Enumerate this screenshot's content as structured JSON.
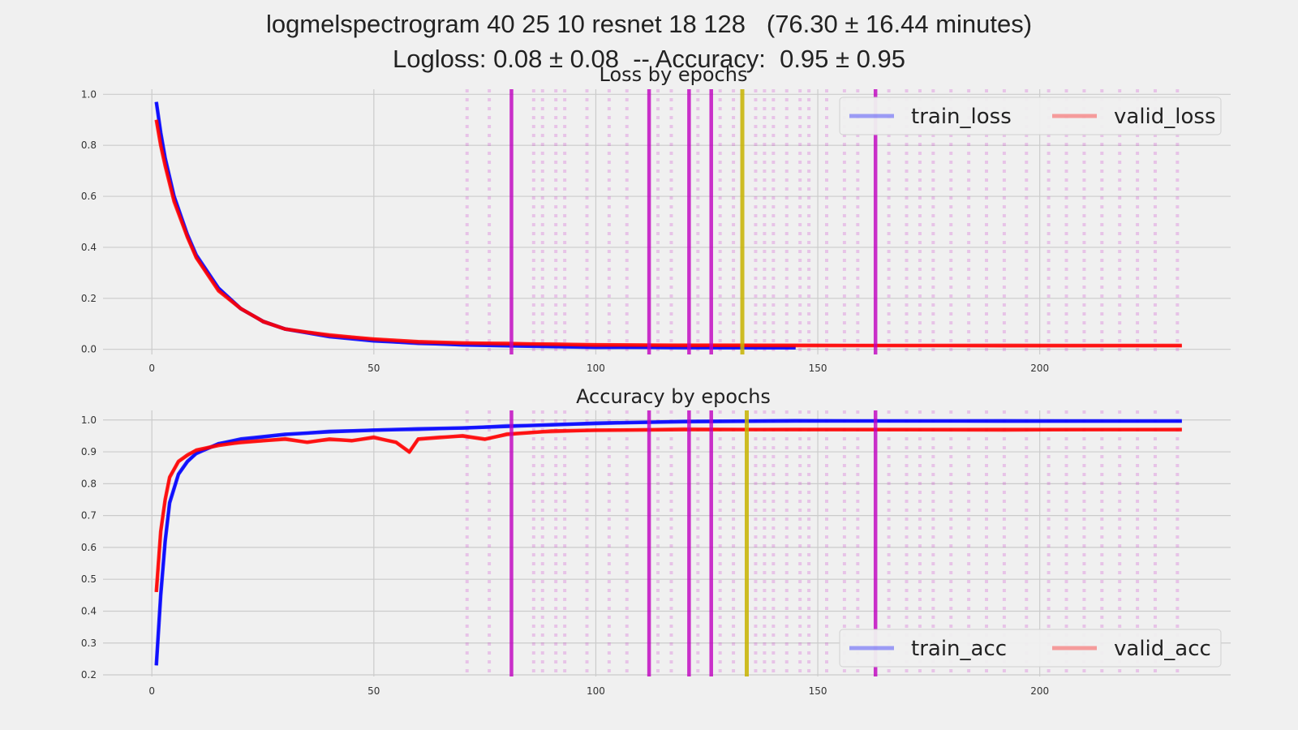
{
  "figure": {
    "title_line1": "logmelspectrogram 40 25 10 resnet 18 128   (76.30 ± 16.44 minutes)",
    "title_line2": "Logloss: 0.08 ± 0.08  -- Accuracy:  0.95 ± 0.95"
  },
  "colors": {
    "train": "#0000ff",
    "valid": "#ff0000",
    "marker": "#c000c0",
    "best": "#c8b400",
    "grid": "#cbcbcb",
    "background": "#f0f0f0"
  },
  "chart_data": [
    {
      "type": "line",
      "title": "Loss by epochs",
      "xlim": [
        -11,
        243
      ],
      "ylim": [
        -0.02,
        1.02
      ],
      "xticks": [
        0,
        50,
        100,
        150,
        200
      ],
      "yticks": [
        0.0,
        0.2,
        0.4,
        0.6,
        0.8,
        1.0
      ],
      "ytick_labels": [
        "0.0",
        "0.2",
        "0.4",
        "0.6",
        "0.8",
        "1.0"
      ],
      "grid": true,
      "legend": {
        "position": "top-right",
        "columns": 2,
        "entries": [
          "train_loss",
          "valid_loss"
        ]
      },
      "series": [
        {
          "name": "train_loss",
          "x": [
            1,
            2,
            3,
            5,
            8,
            10,
            15,
            20,
            25,
            30,
            40,
            50,
            60,
            70,
            80,
            90,
            100,
            120,
            145
          ],
          "y": [
            0.97,
            0.85,
            0.75,
            0.6,
            0.45,
            0.37,
            0.24,
            0.16,
            0.11,
            0.08,
            0.05,
            0.033,
            0.025,
            0.018,
            0.014,
            0.011,
            0.009,
            0.007,
            0.006
          ]
        },
        {
          "name": "valid_loss",
          "x": [
            1,
            2,
            3,
            5,
            8,
            10,
            15,
            20,
            25,
            30,
            40,
            50,
            60,
            70,
            80,
            90,
            100,
            120,
            145,
            192,
            232
          ],
          "y": [
            0.9,
            0.8,
            0.72,
            0.58,
            0.44,
            0.36,
            0.23,
            0.16,
            0.11,
            0.08,
            0.055,
            0.04,
            0.03,
            0.025,
            0.022,
            0.02,
            0.018,
            0.016,
            0.015,
            0.015,
            0.015
          ]
        }
      ],
      "vlines_solid": [
        81,
        112,
        121,
        126
      ],
      "vlines_solid_late": [
        163
      ],
      "vline_best": 133,
      "vlines_dotted": [
        71,
        76,
        86,
        88,
        91,
        93,
        98,
        103,
        107,
        114,
        117,
        123,
        128,
        131,
        136,
        138,
        140,
        143,
        146,
        148,
        152,
        156,
        159,
        166,
        170,
        173,
        176,
        180,
        184,
        188,
        192,
        197,
        202,
        206,
        210,
        214,
        218,
        222,
        226,
        231
      ]
    },
    {
      "type": "line",
      "title": "Accuracy by epochs",
      "xlim": [
        -11,
        243
      ],
      "ylim": [
        0.195,
        1.03
      ],
      "xticks": [
        0,
        50,
        100,
        150,
        200
      ],
      "yticks": [
        0.2,
        0.3,
        0.4,
        0.5,
        0.6,
        0.7,
        0.8,
        0.9,
        1.0
      ],
      "ytick_labels": [
        "0.2",
        "0.3",
        "0.4",
        "0.5",
        "0.6",
        "0.7",
        "0.8",
        "0.9",
        "1.0"
      ],
      "grid": true,
      "legend": {
        "position": "bottom-right",
        "columns": 2,
        "entries": [
          "train_acc",
          "valid_acc"
        ]
      },
      "series": [
        {
          "name": "train_acc",
          "x": [
            1,
            2,
            3,
            4,
            6,
            8,
            10,
            15,
            20,
            30,
            40,
            50,
            60,
            70,
            80,
            90,
            100,
            120,
            145,
            192,
            232
          ],
          "y": [
            0.23,
            0.45,
            0.62,
            0.74,
            0.83,
            0.87,
            0.895,
            0.925,
            0.94,
            0.955,
            0.963,
            0.968,
            0.972,
            0.975,
            0.98,
            0.985,
            0.99,
            0.995,
            0.997,
            0.997,
            0.997
          ]
        },
        {
          "name": "valid_acc",
          "x": [
            1,
            2,
            3,
            4,
            6,
            8,
            10,
            15,
            20,
            25,
            30,
            35,
            40,
            45,
            50,
            55,
            58,
            60,
            65,
            70,
            75,
            80,
            85,
            90,
            100,
            120,
            145,
            192,
            232
          ],
          "y": [
            0.46,
            0.65,
            0.75,
            0.82,
            0.87,
            0.89,
            0.905,
            0.92,
            0.93,
            0.935,
            0.94,
            0.93,
            0.94,
            0.935,
            0.945,
            0.93,
            0.9,
            0.94,
            0.945,
            0.95,
            0.94,
            0.955,
            0.96,
            0.965,
            0.968,
            0.97,
            0.97,
            0.97,
            0.97
          ]
        }
      ],
      "vlines_solid": [
        81,
        112,
        121,
        126
      ],
      "vlines_solid_late": [
        163
      ],
      "vline_best": 134,
      "vlines_dotted": [
        71,
        76,
        86,
        88,
        91,
        93,
        98,
        103,
        107,
        114,
        117,
        123,
        128,
        131,
        136,
        138,
        140,
        143,
        146,
        148,
        152,
        156,
        159,
        166,
        170,
        173,
        176,
        180,
        184,
        188,
        192,
        197,
        202,
        206,
        210,
        214,
        218,
        222,
        226,
        231
      ]
    }
  ]
}
